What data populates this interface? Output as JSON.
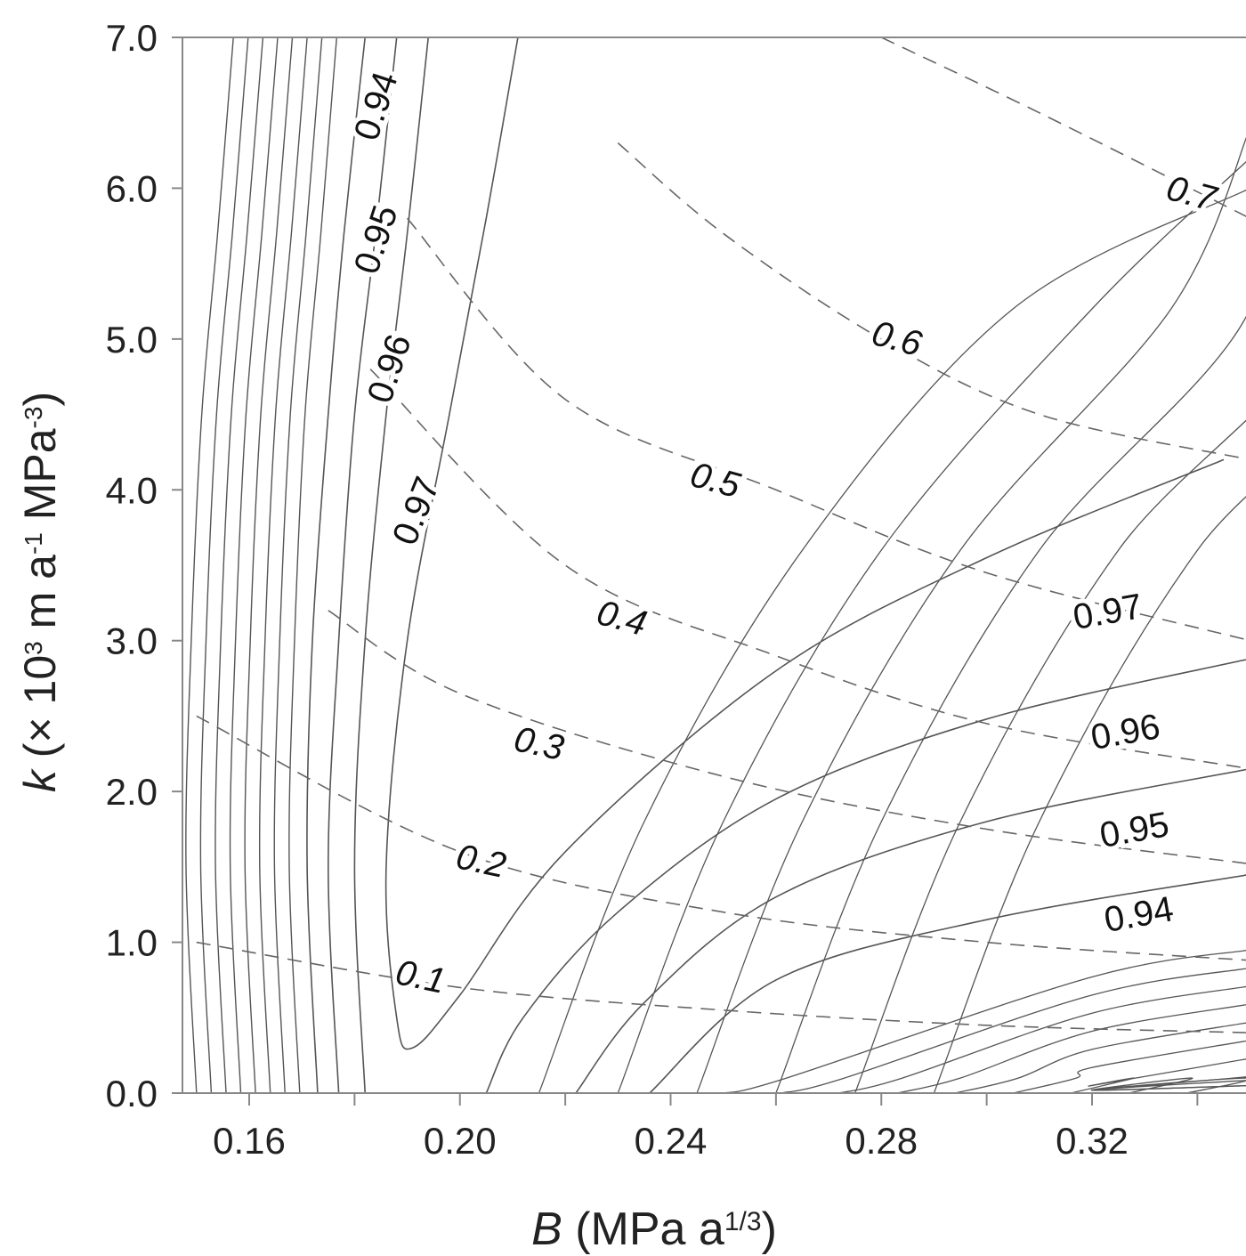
{
  "chart_data": {
    "type": "contour",
    "xlabel": {
      "symbol": "B",
      "unit_pre": " (MPa a",
      "unit_sup": "1/3",
      "unit_post": ")"
    },
    "ylabel": {
      "symbol": "k",
      "unit_a": " (× 10",
      "sup1": "3",
      "unit_b": " m a",
      "sup2": "-1",
      "unit_c": " MPa",
      "sup3": "-3",
      "unit_d": ")"
    },
    "xlim": [
      0.15,
      0.35
    ],
    "ylim": [
      0.0,
      7.0
    ],
    "x_ticks": [
      "0.16",
      "0.20",
      "0.24",
      "0.28",
      "0.32"
    ],
    "x_tick_values": [
      0.16,
      0.2,
      0.24,
      0.28,
      0.32
    ],
    "y_ticks": [
      "0.0",
      "1.0",
      "2.0",
      "3.0",
      "4.0",
      "5.0",
      "6.0",
      "7.0"
    ],
    "y_tick_values": [
      0,
      1,
      2,
      3,
      4,
      5,
      6,
      7
    ],
    "solid_contour_series": {
      "style": "solid",
      "labels": [
        "0.94",
        "0.95",
        "0.96",
        "0.97"
      ],
      "levels": [
        {
          "label": "0.97",
          "points": [
            [
              0.345,
              4.2
            ],
            [
              0.3,
              3.55
            ],
            [
              0.26,
              2.8
            ],
            [
              0.22,
              1.6
            ],
            [
              0.2,
              0.65
            ],
            [
              0.191,
              0.3
            ],
            [
              0.188,
              0.5
            ],
            [
              0.186,
              1.5
            ],
            [
              0.19,
              3.0
            ],
            [
              0.198,
              4.5
            ],
            [
              0.205,
              5.8
            ],
            [
              0.211,
              7.0
            ]
          ]
        },
        {
          "label": "0.96",
          "points": [
            [
              0.35,
              2.88
            ],
            [
              0.3,
              2.48
            ],
            [
              0.26,
              1.95
            ],
            [
              0.23,
              1.2
            ],
            [
              0.212,
              0.5
            ],
            [
              0.205,
              0.0
            ]
          ]
        },
        {
          "label": "0.96",
          "points": [
            [
              0.182,
              0.0
            ],
            [
              0.18,
              1.5
            ],
            [
              0.182,
              3.0
            ],
            [
              0.186,
              4.5
            ],
            [
              0.19,
              5.7
            ],
            [
              0.194,
              7.0
            ]
          ]
        },
        {
          "label": "0.95",
          "points": [
            [
              0.35,
              2.15
            ],
            [
              0.3,
              1.8
            ],
            [
              0.26,
              1.3
            ],
            [
              0.235,
              0.6
            ],
            [
              0.222,
              0.0
            ]
          ]
        },
        {
          "label": "0.95",
          "points": [
            [
              0.177,
              0.0
            ],
            [
              0.175,
              1.5
            ],
            [
              0.177,
              3.0
            ],
            [
              0.18,
              4.5
            ],
            [
              0.184,
              5.7
            ],
            [
              0.188,
              7.0
            ]
          ]
        },
        {
          "label": "0.94",
          "points": [
            [
              0.35,
              1.45
            ],
            [
              0.3,
              1.15
            ],
            [
              0.26,
              0.75
            ],
            [
              0.236,
              0.0
            ]
          ]
        },
        {
          "label": "0.94",
          "points": [
            [
              0.173,
              0.0
            ],
            [
              0.171,
              1.5
            ],
            [
              0.172,
              3.0
            ],
            [
              0.175,
              4.5
            ],
            [
              0.178,
              5.7
            ],
            [
              0.182,
              7.0
            ]
          ]
        }
      ]
    },
    "dashed_contour_series": {
      "style": "dashed",
      "labels": [
        "0.1",
        "0.2",
        "0.3",
        "0.4",
        "0.5",
        "0.6",
        "0.7"
      ],
      "levels": [
        {
          "label": "0.1",
          "points": [
            [
              0.15,
              1.0
            ],
            [
              0.2,
              0.7
            ],
            [
              0.25,
              0.55
            ],
            [
              0.3,
              0.45
            ],
            [
              0.35,
              0.4
            ]
          ]
        },
        {
          "label": "0.2",
          "points": [
            [
              0.15,
              2.5
            ],
            [
              0.2,
              1.6
            ],
            [
              0.25,
              1.2
            ],
            [
              0.3,
              1.0
            ],
            [
              0.35,
              0.88
            ]
          ]
        },
        {
          "label": "0.3",
          "points": [
            [
              0.175,
              3.2
            ],
            [
              0.2,
              2.65
            ],
            [
              0.25,
              2.1
            ],
            [
              0.3,
              1.75
            ],
            [
              0.35,
              1.52
            ]
          ]
        },
        {
          "label": "0.4",
          "points": [
            [
              0.183,
              4.8
            ],
            [
              0.22,
              3.5
            ],
            [
              0.26,
              2.9
            ],
            [
              0.3,
              2.45
            ],
            [
              0.35,
              2.15
            ]
          ]
        },
        {
          "label": "0.5",
          "points": [
            [
              0.19,
              5.8
            ],
            [
              0.22,
              4.6
            ],
            [
              0.26,
              4.0
            ],
            [
              0.3,
              3.45
            ],
            [
              0.35,
              3.0
            ]
          ]
        },
        {
          "label": "0.6",
          "points": [
            [
              0.23,
              6.3
            ],
            [
              0.25,
              5.7
            ],
            [
              0.28,
              5.0
            ],
            [
              0.31,
              4.5
            ],
            [
              0.35,
              4.2
            ]
          ]
        },
        {
          "label": "0.7",
          "points": [
            [
              0.28,
              7.0
            ],
            [
              0.31,
              6.5
            ],
            [
              0.35,
              5.8
            ]
          ]
        }
      ]
    },
    "grid": false,
    "legend": "none",
    "colors": {
      "solid": "#555555",
      "dashed": "#666666",
      "text": "#111111"
    }
  }
}
